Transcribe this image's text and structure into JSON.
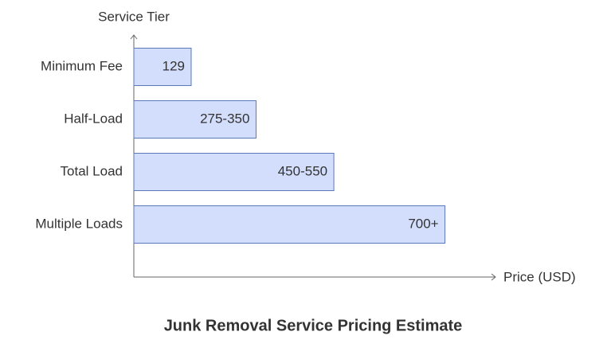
{
  "chart_data": {
    "type": "bar",
    "orientation": "horizontal",
    "title": "Junk Removal Service Pricing Estimate",
    "x_label": "Price (USD)",
    "y_label": "Service Tier",
    "categories": [
      "Minimum Fee",
      "Half-Load",
      "Total Load",
      "Multiple Loads"
    ],
    "values": [
      129,
      275,
      450,
      700
    ],
    "value_labels": [
      "129",
      "275-350",
      "450-550",
      "700+"
    ],
    "color": "#d3defc",
    "edge_color": "#5b78b8",
    "xlim": [
      0,
      810
    ]
  }
}
